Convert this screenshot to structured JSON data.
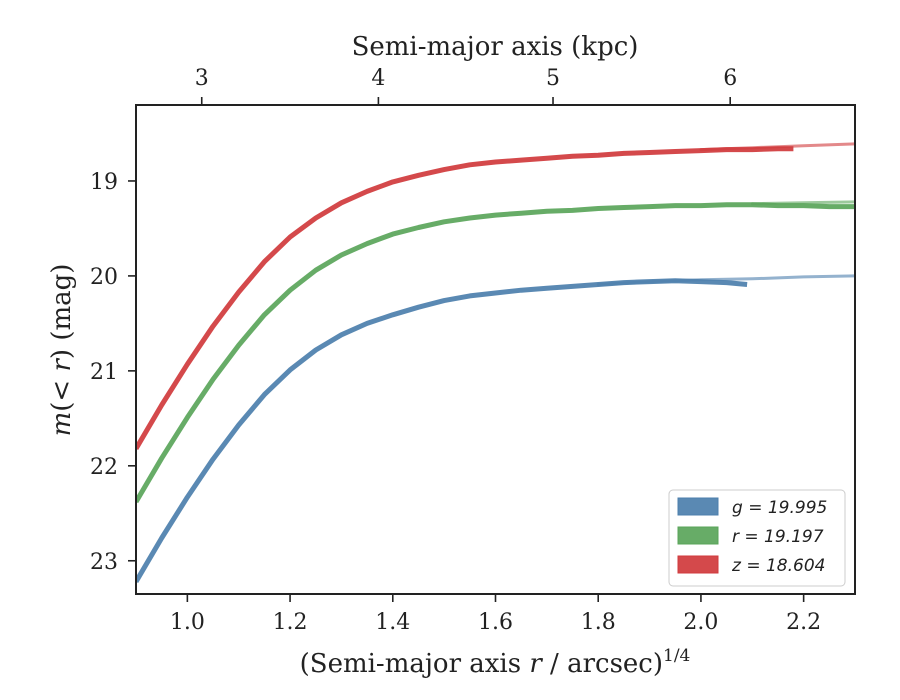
{
  "chart_data": {
    "type": "line",
    "xlabel": "(Semi-major axis ",
    "xlabel_var": "r",
    "xlabel_tail": " / arcsec)",
    "xlabel_sup": "1/4",
    "ylabel_pre": "m(< ",
    "ylabel_var": "r",
    "ylabel_post": ") (mag)",
    "top_xlabel": "Semi-major axis (kpc)",
    "xlim": [
      0.9,
      2.3
    ],
    "ylim": [
      23.35,
      18.2
    ],
    "xticks": [
      1.0,
      1.2,
      1.4,
      1.6,
      1.8,
      2.0,
      2.2
    ],
    "xtick_labels": [
      "1.0",
      "1.2",
      "1.4",
      "1.6",
      "1.8",
      "2.0",
      "2.2"
    ],
    "yticks": [
      19,
      20,
      21,
      22,
      23
    ],
    "ytick_labels": [
      "19",
      "20",
      "21",
      "22",
      "23"
    ],
    "top_ticks_kpc": [
      3,
      4,
      5,
      6
    ],
    "top_tick_labels": [
      "3",
      "4",
      "5",
      "6"
    ],
    "top_ticks_x": [
      1.028,
      1.372,
      1.712,
      2.057
    ],
    "legend_position": "lower-right",
    "series": [
      {
        "name": "g = 19.995",
        "band": "g",
        "value": "19.995",
        "color": "#4c7fad",
        "x": [
          0.9,
          0.95,
          1.0,
          1.05,
          1.1,
          1.15,
          1.2,
          1.25,
          1.3,
          1.35,
          1.4,
          1.45,
          1.5,
          1.55,
          1.6,
          1.65,
          1.7,
          1.75,
          1.8,
          1.85,
          1.9,
          1.95,
          2.0,
          2.05,
          2.09
        ],
        "y": [
          23.22,
          22.76,
          22.33,
          21.93,
          21.57,
          21.25,
          20.99,
          20.78,
          20.62,
          20.5,
          20.41,
          20.33,
          20.26,
          20.21,
          20.18,
          20.15,
          20.13,
          20.11,
          20.09,
          20.07,
          20.06,
          20.05,
          20.06,
          20.07,
          20.09
        ],
        "fit_x": [
          1.8,
          1.9,
          2.0,
          2.1,
          2.2,
          2.3
        ],
        "fit_y": [
          20.09,
          20.06,
          20.04,
          20.03,
          20.01,
          20.0
        ]
      },
      {
        "name": "r = 19.197",
        "band": "r",
        "value": "19.197",
        "color": "#5aa55a",
        "x": [
          0.9,
          0.95,
          1.0,
          1.05,
          1.1,
          1.15,
          1.2,
          1.25,
          1.3,
          1.35,
          1.4,
          1.45,
          1.5,
          1.55,
          1.6,
          1.65,
          1.7,
          1.75,
          1.8,
          1.85,
          1.9,
          1.95,
          2.0,
          2.05,
          2.1,
          2.15,
          2.2,
          2.25,
          2.3
        ],
        "y": [
          22.38,
          21.92,
          21.49,
          21.09,
          20.73,
          20.41,
          20.15,
          19.94,
          19.78,
          19.66,
          19.56,
          19.49,
          19.43,
          19.39,
          19.36,
          19.34,
          19.32,
          19.31,
          19.29,
          19.28,
          19.27,
          19.26,
          19.26,
          19.25,
          19.25,
          19.26,
          19.26,
          19.27,
          19.27
        ],
        "fit_x": [
          2.1,
          2.2,
          2.3
        ],
        "fit_y": [
          19.24,
          19.23,
          19.22
        ]
      },
      {
        "name": "z = 18.604",
        "band": "z",
        "value": "18.604",
        "color": "#d03a3c",
        "x": [
          0.9,
          0.95,
          1.0,
          1.05,
          1.1,
          1.15,
          1.2,
          1.25,
          1.3,
          1.35,
          1.4,
          1.45,
          1.5,
          1.55,
          1.6,
          1.65,
          1.7,
          1.75,
          1.8,
          1.85,
          1.9,
          1.95,
          2.0,
          2.05,
          2.1,
          2.15,
          2.18
        ],
        "y": [
          21.82,
          21.36,
          20.93,
          20.53,
          20.17,
          19.85,
          19.59,
          19.39,
          19.23,
          19.11,
          19.01,
          18.94,
          18.88,
          18.83,
          18.8,
          18.78,
          18.76,
          18.74,
          18.73,
          18.71,
          18.7,
          18.69,
          18.68,
          18.67,
          18.67,
          18.66,
          18.66
        ],
        "fit_x": [
          2.0,
          2.1,
          2.2,
          2.3
        ],
        "fit_y": [
          18.67,
          18.65,
          18.63,
          18.61
        ]
      }
    ]
  }
}
